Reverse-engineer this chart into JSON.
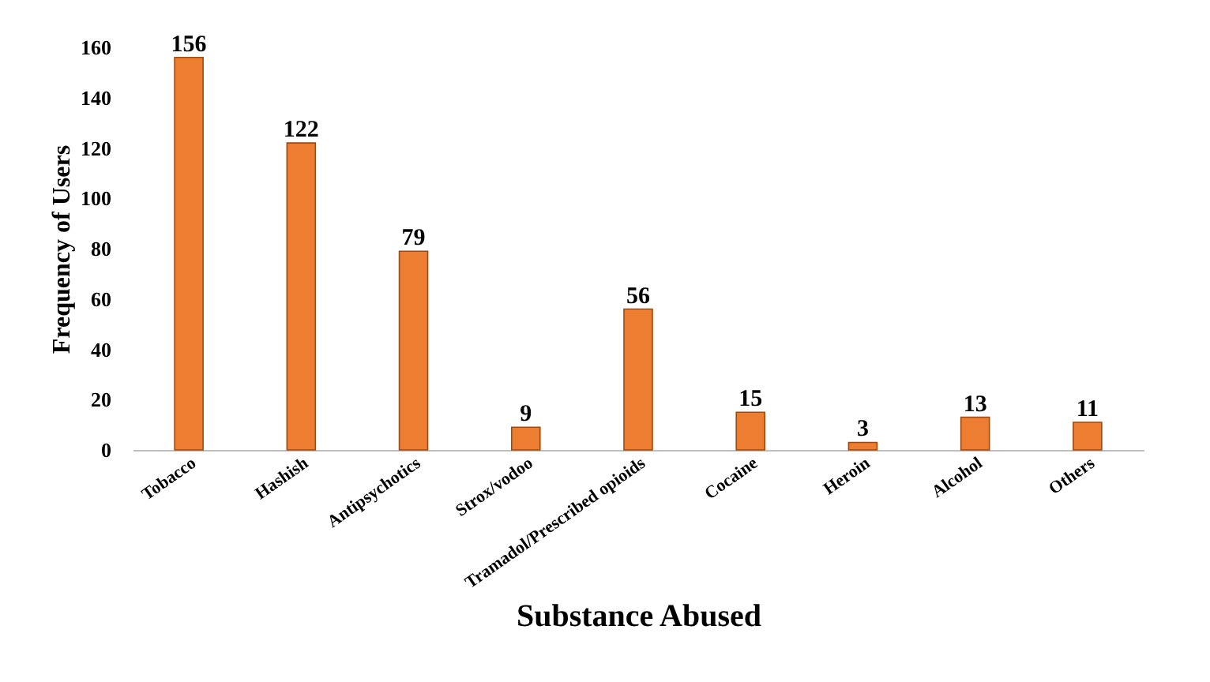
{
  "chart_data": {
    "type": "bar",
    "xlabel": "Substance Abused",
    "ylabel": "Frequency of Users",
    "categories": [
      "Tobacco",
      "Hashish",
      "Antipsychotics",
      "Strox/vodoo",
      "Tramadol/Prescribed opioids",
      "Cocaine",
      "Heroin",
      "Alcohol",
      "Others"
    ],
    "values": [
      156,
      122,
      79,
      9,
      56,
      15,
      3,
      13,
      11
    ],
    "color": "#ed7d31",
    "ylim": [
      0,
      160
    ],
    "yticks": [
      0,
      20,
      40,
      60,
      80,
      100,
      120,
      140,
      160
    ],
    "grid": false,
    "data_labels": true
  }
}
